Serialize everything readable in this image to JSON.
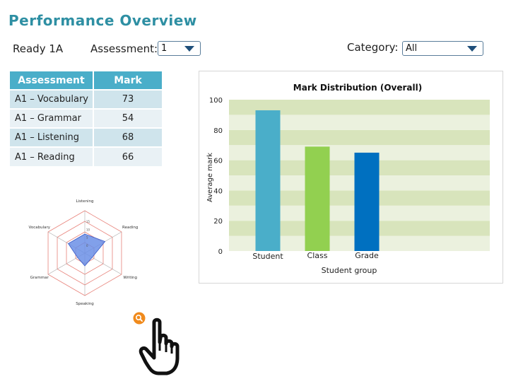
{
  "page": {
    "title": "Performance Overview"
  },
  "filters": {
    "class_name": "Ready 1A",
    "assessment_label": "Assessment:",
    "assessment_value": "1",
    "category_label": "Category:",
    "category_value": "All"
  },
  "table": {
    "headers": [
      "Assessment",
      "Mark"
    ],
    "rows": [
      {
        "name": "A1 – Vocabulary",
        "mark": "73"
      },
      {
        "name": "A1 – Grammar",
        "mark": "54"
      },
      {
        "name": "A1 – Listening",
        "mark": "68"
      },
      {
        "name": "A1 – Reading",
        "mark": "66"
      }
    ]
  },
  "chart_data": {
    "type": "bar",
    "title": "Mark Distribution (Overall)",
    "xlabel": "Student group",
    "ylabel": "Average mark",
    "categories": [
      "Student",
      "Class",
      "Grade"
    ],
    "values": [
      93,
      69,
      65
    ],
    "ylim": [
      0,
      100
    ],
    "yticks": [
      "0",
      "20",
      "40",
      "60",
      "80",
      "100"
    ],
    "colors": [
      "#4aaec9",
      "#92d050",
      "#0070c0"
    ],
    "grid_colors": [
      "#d8e4bc",
      "#ebf1de"
    ]
  },
  "radar": {
    "axes": [
      "Listening",
      "Reading",
      "Writing",
      "Speaking",
      "Grammar",
      "Vocabulary"
    ],
    "tick_labels": [
      "15",
      "10",
      "5",
      "0"
    ],
    "max": 20,
    "values": [
      9,
      11,
      4,
      6,
      4,
      9
    ],
    "fill_color": "#6b8fe6",
    "grid_color": "#e8837b"
  },
  "icons": {
    "zoom": "zoom-icon",
    "pointer": "hand-pointer-icon"
  }
}
